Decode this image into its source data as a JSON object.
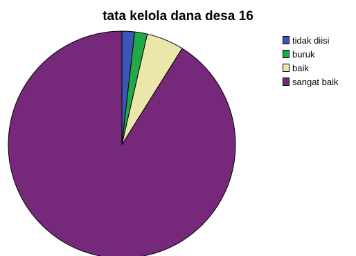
{
  "chart_data": {
    "type": "pie",
    "title": "tata kelola dana desa 16",
    "legend_position": "top-right",
    "slices": [
      {
        "label": "tidak diisi",
        "value": 1.8,
        "color": "#3c56b5"
      },
      {
        "label": "buruk",
        "value": 1.8,
        "color": "#22a846"
      },
      {
        "label": "baik",
        "value": 5.3,
        "color": "#ebe6aa"
      },
      {
        "label": "sangat baik",
        "value": 91.1,
        "color": "#76287a"
      }
    ]
  }
}
